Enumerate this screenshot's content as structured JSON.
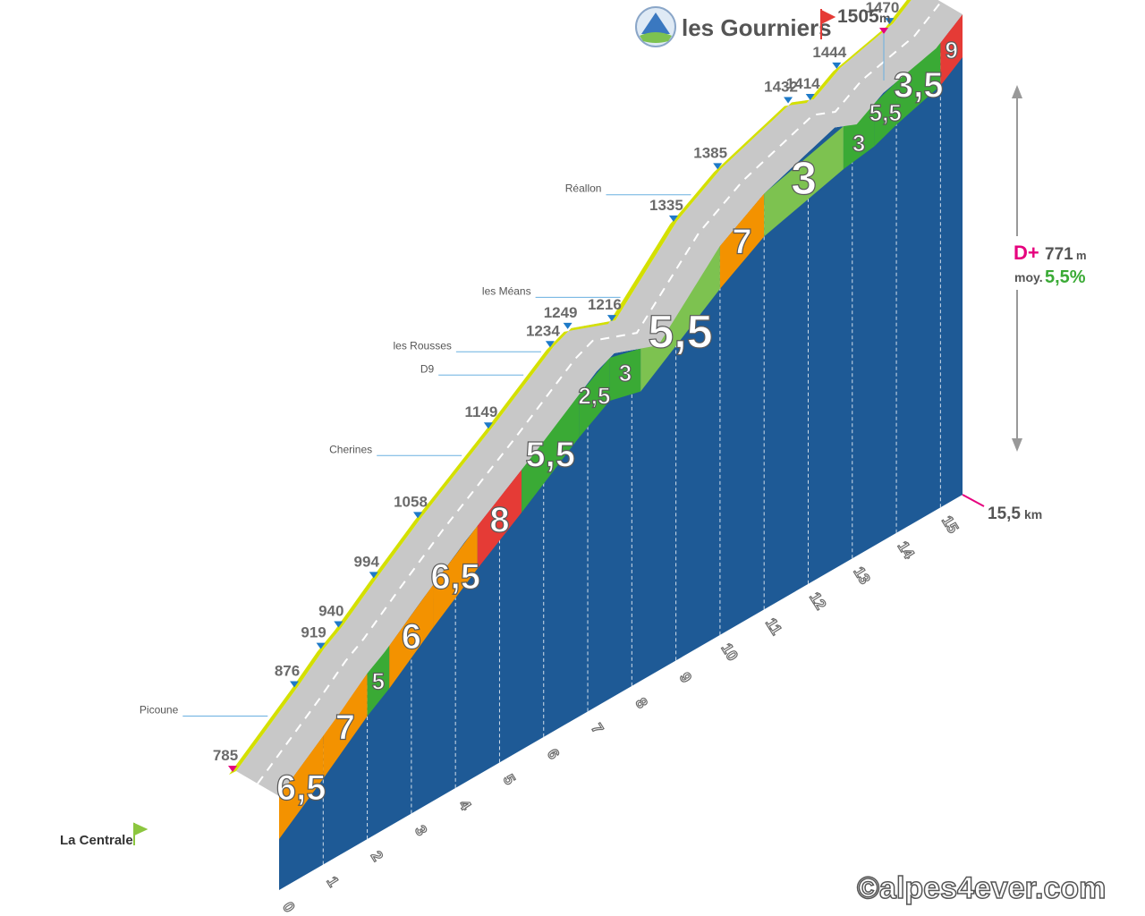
{
  "summit": {
    "name": "les Gourniers",
    "elevation": "1505",
    "unit": "m"
  },
  "start": {
    "name": "La Centrale",
    "elevation": "785"
  },
  "total": {
    "distance": "15,5",
    "distance_unit": "km",
    "gain_label": "D+",
    "gain": "771",
    "gain_unit": "m",
    "avg_label": "moy.",
    "avg": "5,5%"
  },
  "credit": "©alpes4ever.com",
  "colors": {
    "road": "#c8c8c8",
    "edge": "#d4e000",
    "wall": "#1e5a96",
    "red": "#e53b36",
    "orange": "#f39200",
    "green": "#3aaa35",
    "lightgreen": "#7dc250",
    "magenta": "#e6007e"
  },
  "chart_data": {
    "type": "area",
    "title": "les Gourniers",
    "xlabel": "km",
    "ylabel": "m",
    "xlim": [
      0,
      15.5
    ],
    "ylim": [
      785,
      1505
    ],
    "km_ticks": [
      "0",
      "1",
      "2",
      "3",
      "4",
      "5",
      "6",
      "7",
      "8",
      "9",
      "10",
      "11",
      "12",
      "13",
      "14",
      "15"
    ],
    "segments": [
      {
        "from": 0,
        "to": 1,
        "grade": "6,5",
        "color": "orange"
      },
      {
        "from": 1,
        "to": 2,
        "grade": "7",
        "color": "orange"
      },
      {
        "from": 2,
        "to": 2.5,
        "grade": "5",
        "color": "green"
      },
      {
        "from": 2.5,
        "to": 3.5,
        "grade": "6",
        "color": "orange"
      },
      {
        "from": 3.5,
        "to": 4.5,
        "grade": "6,5",
        "color": "orange"
      },
      {
        "from": 4.5,
        "to": 5.5,
        "grade": "8",
        "color": "red"
      },
      {
        "from": 5.5,
        "to": 6.8,
        "grade": "5,5",
        "color": "green"
      },
      {
        "from": 6.8,
        "to": 7.5,
        "grade": "2,5",
        "color": "green"
      },
      {
        "from": 7.5,
        "to": 8.2,
        "grade": "3",
        "color": "green"
      },
      {
        "from": 8.2,
        "to": 10,
        "grade": "5,5",
        "color": "lightgreen"
      },
      {
        "from": 10,
        "to": 11,
        "grade": "7",
        "color": "orange"
      },
      {
        "from": 11,
        "to": 12.8,
        "grade": "3",
        "color": "lightgreen"
      },
      {
        "from": 12.8,
        "to": 13.5,
        "grade": "3",
        "color": "green"
      },
      {
        "from": 13.5,
        "to": 14,
        "grade": "5,5",
        "color": "green"
      },
      {
        "from": 14,
        "to": 15,
        "grade": "3,5",
        "color": "green"
      },
      {
        "from": 15,
        "to": 15.5,
        "grade": "9",
        "color": "red"
      }
    ],
    "profile": [
      {
        "km": 0,
        "alt": 785
      },
      {
        "km": 1.4,
        "alt": 876
      },
      {
        "km": 2.0,
        "alt": 919
      },
      {
        "km": 2.4,
        "alt": 940
      },
      {
        "km": 3.2,
        "alt": 994
      },
      {
        "km": 4.2,
        "alt": 1058
      },
      {
        "km": 5.8,
        "alt": 1149
      },
      {
        "km": 7.2,
        "alt": 1234
      },
      {
        "km": 7.6,
        "alt": 1249
      },
      {
        "km": 8.6,
        "alt": 1216
      },
      {
        "km": 10.0,
        "alt": 1335
      },
      {
        "km": 11.0,
        "alt": 1385
      },
      {
        "km": 12.6,
        "alt": 1432
      },
      {
        "km": 13.1,
        "alt": 1414
      },
      {
        "km": 13.7,
        "alt": 1444
      },
      {
        "km": 14.9,
        "alt": 1470
      },
      {
        "km": 15.5,
        "alt": 1505
      }
    ],
    "markers": [
      {
        "label": "785",
        "km": 0,
        "alt": 785,
        "place": "La Centrale"
      },
      {
        "label": "876",
        "km": 1.4,
        "alt": 876
      },
      {
        "label": "919",
        "km": 2.0,
        "alt": 919
      },
      {
        "label": "940",
        "km": 2.4,
        "alt": 940
      },
      {
        "label": "994",
        "km": 3.2,
        "alt": 994
      },
      {
        "label": "1058",
        "km": 4.2,
        "alt": 1058
      },
      {
        "label": "1149",
        "km": 5.8,
        "alt": 1149
      },
      {
        "label": "1234",
        "km": 7.2,
        "alt": 1234
      },
      {
        "label": "1249",
        "km": 7.6,
        "alt": 1249
      },
      {
        "label": "1216",
        "km": 8.6,
        "alt": 1216
      },
      {
        "label": "1335",
        "km": 10.0,
        "alt": 1335
      },
      {
        "label": "1385",
        "km": 11.0,
        "alt": 1385
      },
      {
        "label": "1432",
        "km": 12.6,
        "alt": 1432
      },
      {
        "label": "1414",
        "km": 13.1,
        "alt": 1414
      },
      {
        "label": "1444",
        "km": 13.7,
        "alt": 1444
      },
      {
        "label": "1470",
        "km": 14.9,
        "alt": 1470
      }
    ],
    "places": [
      "Picoune",
      "Cherines",
      "D9",
      "les Rousses",
      "les Méans",
      "Réallon"
    ]
  }
}
